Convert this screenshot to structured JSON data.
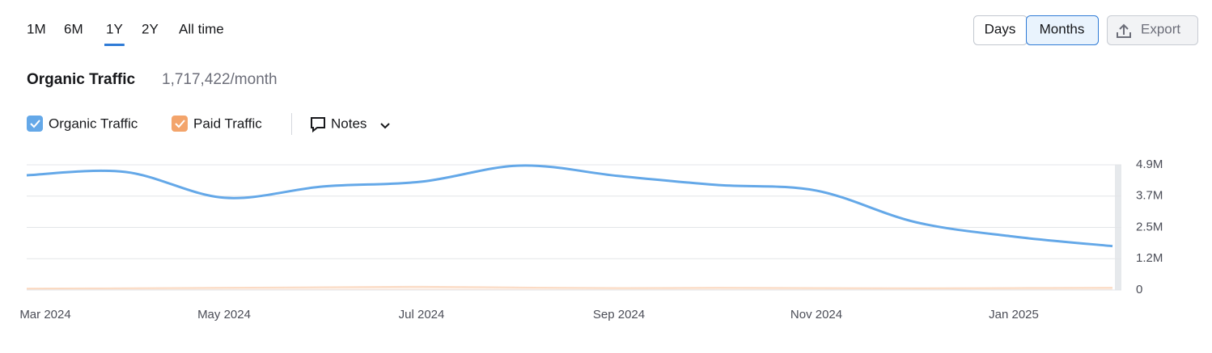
{
  "tabs": [
    "1M",
    "6M",
    "1Y",
    "2Y",
    "All time"
  ],
  "active_tab": 2,
  "view_buttons": [
    "Days",
    "Months"
  ],
  "active_view": 1,
  "export": "Export",
  "summary": {
    "title": "Organic Traffic",
    "value": "1,717,422/month"
  },
  "notes": "Notes",
  "chart_data": {
    "type": "line",
    "categories": [
      "Mar 2024",
      null,
      "May 2024",
      null,
      "Jul 2024",
      null,
      "Sep 2024",
      null,
      "Nov 2024",
      null,
      "Jan 2025",
      null
    ],
    "series": [
      {
        "name": "Organic Traffic",
        "color": "#64a8e8",
        "values": [
          4490000,
          4620000,
          3610000,
          4050000,
          4240000,
          4870000,
          4460000,
          4110000,
          3890000,
          2660000,
          2090000,
          1717422
        ]
      },
      {
        "name": "Paid Traffic",
        "color": "#f3a46b",
        "values": [
          60000,
          70000,
          90000,
          110000,
          130000,
          100000,
          80000,
          90000,
          80000,
          70000,
          80000,
          90000
        ]
      }
    ],
    "ylim": [
      0,
      4900000
    ],
    "yticks": [
      0,
      {
        "value": 1225000,
        "label": "1.2M"
      },
      {
        "value": 2450000,
        "label": "2.5M"
      },
      {
        "value": 3675000,
        "label": "3.7M"
      },
      {
        "value": 4900000,
        "label": "4.9M"
      }
    ],
    "grid": true
  }
}
